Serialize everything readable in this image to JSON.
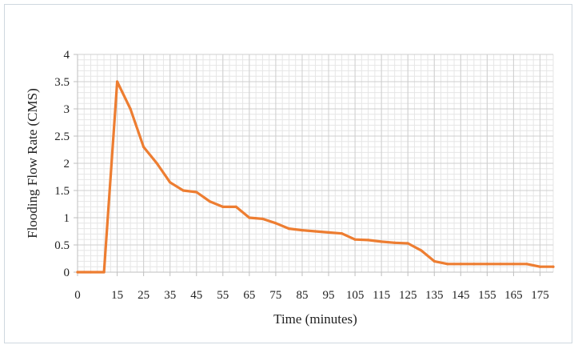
{
  "chart_data": {
    "type": "line",
    "xlabel": "Time (minutes)",
    "ylabel": "Flooding Flow Rate (CMS)",
    "xlim": [
      0,
      180
    ],
    "ylim": [
      0,
      4
    ],
    "x_ticks": [
      0,
      15,
      25,
      35,
      45,
      55,
      65,
      75,
      85,
      95,
      105,
      115,
      125,
      135,
      145,
      155,
      165,
      175
    ],
    "x_tick_labels": [
      "0",
      "15",
      "25",
      "35",
      "45",
      "55",
      "65",
      "75",
      "85",
      "95",
      "105",
      "115",
      "125",
      "135",
      "145",
      "155",
      "165",
      "175"
    ],
    "y_ticks": [
      0,
      0.5,
      1,
      1.5,
      2,
      2.5,
      3,
      3.5,
      4
    ],
    "y_tick_labels": [
      "0",
      "0.5",
      "1",
      "1.5",
      "2",
      "2.5",
      "3",
      "3.5",
      "4"
    ],
    "grid": true,
    "legend": "none",
    "series": [
      {
        "color": "#ed7d31",
        "x": [
          0,
          5,
          10,
          15,
          20,
          25,
          30,
          35,
          40,
          45,
          50,
          55,
          60,
          65,
          70,
          75,
          80,
          85,
          90,
          95,
          100,
          105,
          110,
          115,
          120,
          125,
          130,
          135,
          140,
          145,
          150,
          155,
          160,
          165,
          170,
          175,
          180
        ],
        "y": [
          0,
          0,
          0,
          3.5,
          3.0,
          2.3,
          2.0,
          1.65,
          1.5,
          1.47,
          1.3,
          1.2,
          1.2,
          1.0,
          0.98,
          0.9,
          0.8,
          0.77,
          0.75,
          0.73,
          0.71,
          0.6,
          0.59,
          0.56,
          0.54,
          0.53,
          0.4,
          0.2,
          0.15,
          0.15,
          0.15,
          0.15,
          0.15,
          0.15,
          0.15,
          0.1,
          0.1
        ]
      }
    ]
  }
}
